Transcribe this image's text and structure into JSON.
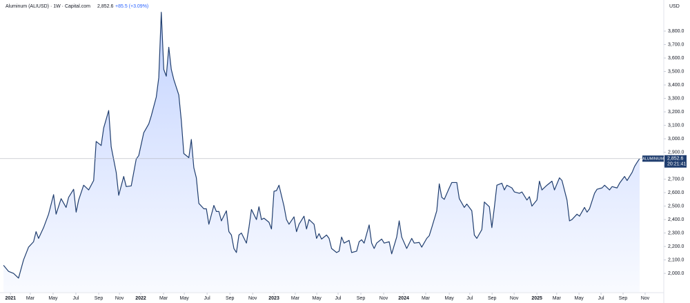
{
  "chart_data": {
    "type": "area",
    "title": "Aluminum (ALIUSD) · 1W · Capital.com",
    "last_price": "2,852.6",
    "change": "+85.5 (+3.09%)",
    "symbol_tag": "ALUMINIUM",
    "countdown": "20:21:41",
    "unit": "USD",
    "color": "#1f3d6e",
    "grid": false,
    "x": [
      0,
      2,
      4,
      6,
      8,
      10,
      12,
      13,
      14,
      16,
      18,
      20,
      21,
      23,
      25,
      26,
      28,
      29,
      30,
      32,
      34,
      36,
      37,
      39,
      40,
      42,
      43,
      45,
      46,
      48,
      49,
      51,
      53,
      54,
      56,
      58,
      59,
      61,
      62,
      63,
      64,
      65,
      66,
      67,
      68,
      70,
      71,
      72,
      74,
      75,
      76,
      77,
      78,
      80,
      81,
      82,
      84,
      85,
      86,
      87,
      89,
      90,
      91,
      92,
      93,
      94,
      95,
      97,
      98,
      99,
      101,
      102,
      103,
      104,
      106,
      107,
      108,
      109,
      110,
      112,
      113,
      114,
      116,
      117,
      118,
      120,
      121,
      122,
      124,
      125,
      126,
      127,
      129,
      130,
      131,
      133,
      134,
      135,
      136,
      138,
      139,
      141,
      142,
      143,
      144,
      146,
      147,
      148,
      149,
      151,
      152,
      154,
      155,
      157,
      158,
      159,
      161,
      163,
      164,
      166,
      167,
      169,
      170,
      171,
      173,
      174,
      175,
      176,
      178,
      179,
      181,
      182,
      184,
      185,
      187,
      188,
      189,
      191,
      192,
      194,
      195,
      196,
      197,
      199,
      200,
      201,
      203,
      204,
      206,
      207,
      209,
      210,
      211,
      213,
      214,
      215,
      217,
      219,
      220,
      222,
      223,
      225,
      226,
      227,
      229,
      230,
      232,
      233,
      234,
      236,
      237,
      239,
      240,
      242,
      243,
      245,
      246,
      248,
      249,
      251,
      252,
      253,
      254
    ],
    "values": [
      2060,
      2015,
      2000,
      1965,
      2100,
      2195,
      2235,
      2310,
      2260,
      2340,
      2440,
      2585,
      2440,
      2555,
      2490,
      2565,
      2625,
      2455,
      2545,
      2655,
      2620,
      2690,
      2980,
      2950,
      3080,
      3210,
      2940,
      2750,
      2580,
      2720,
      2645,
      2650,
      2850,
      2875,
      3045,
      3110,
      3170,
      3310,
      3455,
      3940,
      3515,
      3465,
      3680,
      3515,
      3440,
      3325,
      3135,
      2890,
      2860,
      2995,
      2785,
      2710,
      2520,
      2480,
      2480,
      2365,
      2505,
      2460,
      2460,
      2390,
      2465,
      2310,
      2285,
      2185,
      2155,
      2285,
      2300,
      2225,
      2340,
      2475,
      2400,
      2495,
      2400,
      2410,
      2380,
      2330,
      2610,
      2615,
      2655,
      2500,
      2400,
      2365,
      2420,
      2310,
      2365,
      2425,
      2330,
      2400,
      2365,
      2260,
      2295,
      2255,
      2285,
      2260,
      2185,
      2155,
      2165,
      2270,
      2225,
      2245,
      2155,
      2165,
      2235,
      2250,
      2225,
      2360,
      2225,
      2185,
      2225,
      2255,
      2225,
      2235,
      2145,
      2270,
      2390,
      2270,
      2185,
      2260,
      2225,
      2230,
      2195,
      2260,
      2280,
      2340,
      2465,
      2665,
      2565,
      2550,
      2635,
      2675,
      2675,
      2555,
      2490,
      2515,
      2465,
      2285,
      2260,
      2325,
      2530,
      2495,
      2340,
      2490,
      2655,
      2670,
      2620,
      2655,
      2635,
      2605,
      2595,
      2605,
      2545,
      2570,
      2500,
      2545,
      2685,
      2620,
      2655,
      2685,
      2620,
      2710,
      2690,
      2545,
      2390,
      2400,
      2440,
      2425,
      2490,
      2455,
      2480,
      2595,
      2625,
      2635,
      2655,
      2620,
      2645,
      2635,
      2670,
      2720,
      2690,
      2750,
      2795,
      2825,
      2852.6
    ],
    "xlim": [
      -1.4,
      263.1
    ],
    "xticks": [
      {
        "value": 2.8,
        "label": "2021"
      },
      {
        "value": 10.7,
        "label": "Mar"
      },
      {
        "value": 19.8,
        "label": "May"
      },
      {
        "value": 28.9,
        "label": "Jul"
      },
      {
        "value": 38.0,
        "label": "Sep"
      },
      {
        "value": 46.3,
        "label": "Nov"
      },
      {
        "value": 54.8,
        "label": "2022"
      },
      {
        "value": 63.9,
        "label": "Mar"
      },
      {
        "value": 72.2,
        "label": "May"
      },
      {
        "value": 81.3,
        "label": "Jul"
      },
      {
        "value": 90.4,
        "label": "Sep"
      },
      {
        "value": 99.5,
        "label": "Nov"
      },
      {
        "value": 108.0,
        "label": "2023"
      },
      {
        "value": 116.5,
        "label": "Mar"
      },
      {
        "value": 125.1,
        "label": "May"
      },
      {
        "value": 133.6,
        "label": "Jul"
      },
      {
        "value": 142.7,
        "label": "Sep"
      },
      {
        "value": 151.8,
        "label": "Nov"
      },
      {
        "value": 159.8,
        "label": "2024"
      },
      {
        "value": 168.6,
        "label": "Mar"
      },
      {
        "value": 178.0,
        "label": "May"
      },
      {
        "value": 186.2,
        "label": "Jul"
      },
      {
        "value": 195.1,
        "label": "Sep"
      },
      {
        "value": 203.9,
        "label": "Nov"
      },
      {
        "value": 213.0,
        "label": "2025"
      },
      {
        "value": 220.9,
        "label": "Mar"
      },
      {
        "value": 229.8,
        "label": "May"
      },
      {
        "value": 238.6,
        "label": "Jul"
      },
      {
        "value": 247.4,
        "label": "Sep"
      },
      {
        "value": 256.2,
        "label": "Nov"
      }
    ],
    "ylim": [
      1862,
      4031
    ],
    "yticks": [
      {
        "value": 2000,
        "label": "2,000.0"
      },
      {
        "value": 2100,
        "label": "2,100.0"
      },
      {
        "value": 2200,
        "label": "2,200.0"
      },
      {
        "value": 2300,
        "label": "2,300.0"
      },
      {
        "value": 2400,
        "label": "2,400.0"
      },
      {
        "value": 2500,
        "label": "2,500.0"
      },
      {
        "value": 2600,
        "label": "2,600.0"
      },
      {
        "value": 2700,
        "label": "2,700.0"
      },
      {
        "value": 2800,
        "label": "2,800.0"
      },
      {
        "value": 2900,
        "label": "2,900.0"
      },
      {
        "value": 3000,
        "label": "3,000.0"
      },
      {
        "value": 3100,
        "label": "3,100.0"
      },
      {
        "value": 3200,
        "label": "3,200.0"
      },
      {
        "value": 3300,
        "label": "3,300.0"
      },
      {
        "value": 3400,
        "label": "3,400.0"
      },
      {
        "value": 3500,
        "label": "3,500.0"
      },
      {
        "value": 3600,
        "label": "3,600.0"
      },
      {
        "value": 3700,
        "label": "3,700.0"
      },
      {
        "value": 3800,
        "label": "3,800.0"
      }
    ]
  }
}
